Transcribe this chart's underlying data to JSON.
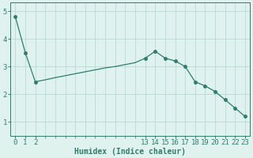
{
  "x": [
    0,
    1,
    2,
    3,
    4,
    5,
    6,
    7,
    8,
    9,
    10,
    11,
    12,
    13,
    14,
    15,
    16,
    17,
    18,
    19,
    20,
    21,
    22,
    23
  ],
  "y": [
    4.8,
    3.5,
    2.45,
    2.52,
    2.6,
    2.67,
    2.74,
    2.81,
    2.88,
    2.95,
    3.0,
    3.07,
    3.14,
    3.3,
    3.55,
    3.3,
    3.2,
    3.0,
    2.45,
    2.3,
    2.1,
    1.8,
    1.5,
    1.2
  ],
  "line_color": "#2e7d6e",
  "marker_x": [
    0,
    1,
    2,
    13,
    14,
    15,
    16,
    17,
    18,
    19,
    20,
    21,
    22,
    23
  ],
  "marker_y": [
    4.8,
    3.5,
    2.45,
    3.3,
    3.55,
    3.3,
    3.2,
    3.0,
    2.45,
    2.3,
    2.1,
    1.8,
    1.5,
    1.2
  ],
  "bg_color": "#dff2ee",
  "grid_color": "#b0d8d0",
  "xlabel": "Humidex (Indice chaleur)",
  "xlim": [
    -0.5,
    23.5
  ],
  "ylim": [
    0.5,
    5.3
  ],
  "yticks": [
    1,
    2,
    3,
    4,
    5
  ],
  "xticks_sparse": [
    0,
    1,
    2,
    13,
    14,
    15,
    16,
    17,
    18,
    19,
    20,
    21,
    22,
    23
  ],
  "xlabel_fontsize": 7,
  "tick_fontsize": 6.5
}
